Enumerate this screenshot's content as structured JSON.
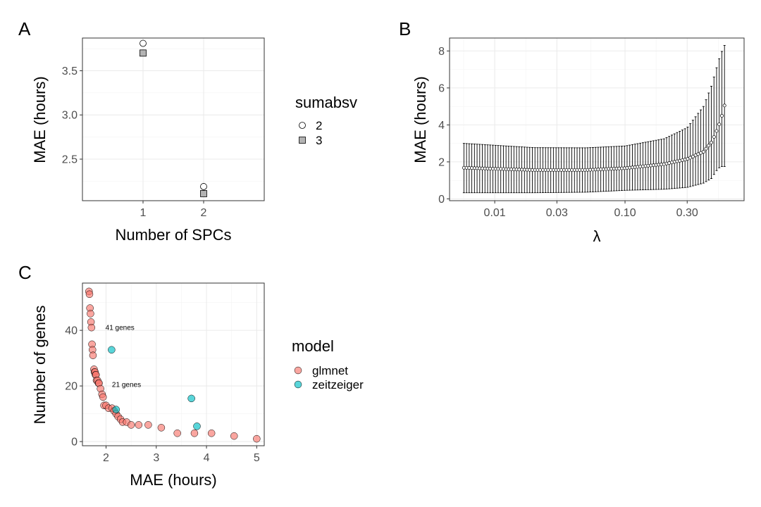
{
  "panel_tags": {
    "a": "A",
    "b": "B",
    "c": "C"
  },
  "chart_data": [
    {
      "panel": "A",
      "type": "scatter",
      "xlabel": "Number of SPCs",
      "ylabel": "MAE (hours)",
      "x_categories": [
        "1",
        "2"
      ],
      "yticks": [
        2.5,
        3.0,
        3.5
      ],
      "ytick_labels": [
        "2.5",
        "3.0",
        "3.5"
      ],
      "ylim": [
        2.03,
        3.87
      ],
      "grid": true,
      "legend": {
        "title": "sumabsv",
        "placement": "right"
      },
      "series": [
        {
          "name": "2",
          "shape": "circle",
          "fill": "#ffffff",
          "points": [
            {
              "x": "1",
              "y": 3.81
            },
            {
              "x": "2",
              "y": 2.19
            }
          ]
        },
        {
          "name": "3",
          "shape": "square",
          "fill": "#b3b3b3",
          "points": [
            {
              "x": "1",
              "y": 3.7
            },
            {
              "x": "2",
              "y": 2.11
            }
          ]
        }
      ]
    },
    {
      "panel": "B",
      "type": "scatter",
      "xlabel": "λ",
      "ylabel": "MAE (hours)",
      "x_scale": "log",
      "xticks": [
        0.01,
        0.03,
        0.1,
        0.3
      ],
      "xtick_labels": [
        "0.01",
        "0.03",
        "0.10",
        "0.30"
      ],
      "xlim": [
        0.0045,
        0.82
      ],
      "yticks": [
        0,
        2,
        4,
        6,
        8
      ],
      "ytick_labels": [
        "0",
        "2",
        "4",
        "6",
        "8"
      ],
      "ylim": [
        -0.1,
        8.7
      ],
      "grid": true,
      "lambda_range": [
        0.0058,
        0.58
      ],
      "n_lambda": 100,
      "mean_profile": [
        [
          0.0058,
          1.68
        ],
        [
          0.02,
          1.56
        ],
        [
          0.05,
          1.56
        ],
        [
          0.1,
          1.66
        ],
        [
          0.2,
          1.88
        ],
        [
          0.3,
          2.15
        ],
        [
          0.4,
          2.55
        ],
        [
          0.46,
          3.05
        ],
        [
          0.5,
          3.6
        ],
        [
          0.54,
          4.2
        ],
        [
          0.58,
          5.05
        ]
      ],
      "upper_profile": [
        [
          0.0058,
          3.0
        ],
        [
          0.02,
          2.77
        ],
        [
          0.05,
          2.76
        ],
        [
          0.1,
          2.86
        ],
        [
          0.2,
          3.25
        ],
        [
          0.3,
          3.85
        ],
        [
          0.4,
          5.0
        ],
        [
          0.46,
          6.1
        ],
        [
          0.5,
          7.0
        ],
        [
          0.54,
          7.8
        ],
        [
          0.58,
          8.3
        ]
      ],
      "lower_profile": [
        [
          0.0058,
          0.33
        ],
        [
          0.02,
          0.33
        ],
        [
          0.05,
          0.36
        ],
        [
          0.1,
          0.46
        ],
        [
          0.2,
          0.52
        ],
        [
          0.3,
          0.62
        ],
        [
          0.4,
          0.85
        ],
        [
          0.46,
          1.1
        ],
        [
          0.5,
          1.5
        ],
        [
          0.54,
          1.75
        ],
        [
          0.58,
          1.75
        ]
      ]
    },
    {
      "panel": "C",
      "type": "scatter",
      "xlabel": "MAE (hours)",
      "ylabel": "Number of genes",
      "xticks": [
        2,
        3,
        4,
        5
      ],
      "xtick_labels": [
        "2",
        "3",
        "4",
        "5"
      ],
      "xlim": [
        1.53,
        5.15
      ],
      "yticks": [
        0,
        20,
        40
      ],
      "ytick_labels": [
        "0",
        "20",
        "40"
      ],
      "ylim": [
        -1.5,
        57
      ],
      "grid": true,
      "legend": {
        "title": "model",
        "placement": "right"
      },
      "annotations": [
        {
          "text": "41 genes",
          "x": 1.89,
          "y": 41
        },
        {
          "text": "21 genes",
          "x": 2.02,
          "y": 20.5
        }
      ],
      "series": [
        {
          "name": "glmnet",
          "color": "#f8766d",
          "points": [
            [
              1.66,
              54
            ],
            [
              1.67,
              53
            ],
            [
              1.68,
              48
            ],
            [
              1.69,
              46
            ],
            [
              1.7,
              43
            ],
            [
              1.71,
              41
            ],
            [
              1.72,
              35
            ],
            [
              1.73,
              33
            ],
            [
              1.74,
              31
            ],
            [
              1.76,
              26
            ],
            [
              1.77,
              25
            ],
            [
              1.78,
              25
            ],
            [
              1.79,
              24
            ],
            [
              1.8,
              24
            ],
            [
              1.81,
              22
            ],
            [
              1.83,
              22
            ],
            [
              1.85,
              21
            ],
            [
              1.86,
              21
            ],
            [
              1.89,
              19
            ],
            [
              1.92,
              17
            ],
            [
              1.94,
              16
            ],
            [
              1.96,
              13
            ],
            [
              2.0,
              13
            ],
            [
              2.05,
              12
            ],
            [
              2.12,
              12
            ],
            [
              2.16,
              11
            ],
            [
              2.2,
              10
            ],
            [
              2.24,
              9
            ],
            [
              2.29,
              8
            ],
            [
              2.33,
              7
            ],
            [
              2.41,
              7
            ],
            [
              2.5,
              6
            ],
            [
              2.65,
              6
            ],
            [
              2.84,
              6
            ],
            [
              3.1,
              5
            ],
            [
              3.42,
              3
            ],
            [
              3.76,
              3
            ],
            [
              4.1,
              3
            ],
            [
              4.55,
              2
            ],
            [
              5.0,
              1
            ]
          ]
        },
        {
          "name": "zeitzeiger",
          "color": "#00bfc4",
          "points": [
            [
              2.11,
              33
            ],
            [
              2.2,
              11.5
            ],
            [
              3.7,
              15.5
            ],
            [
              3.81,
              5.5
            ]
          ]
        }
      ]
    }
  ]
}
